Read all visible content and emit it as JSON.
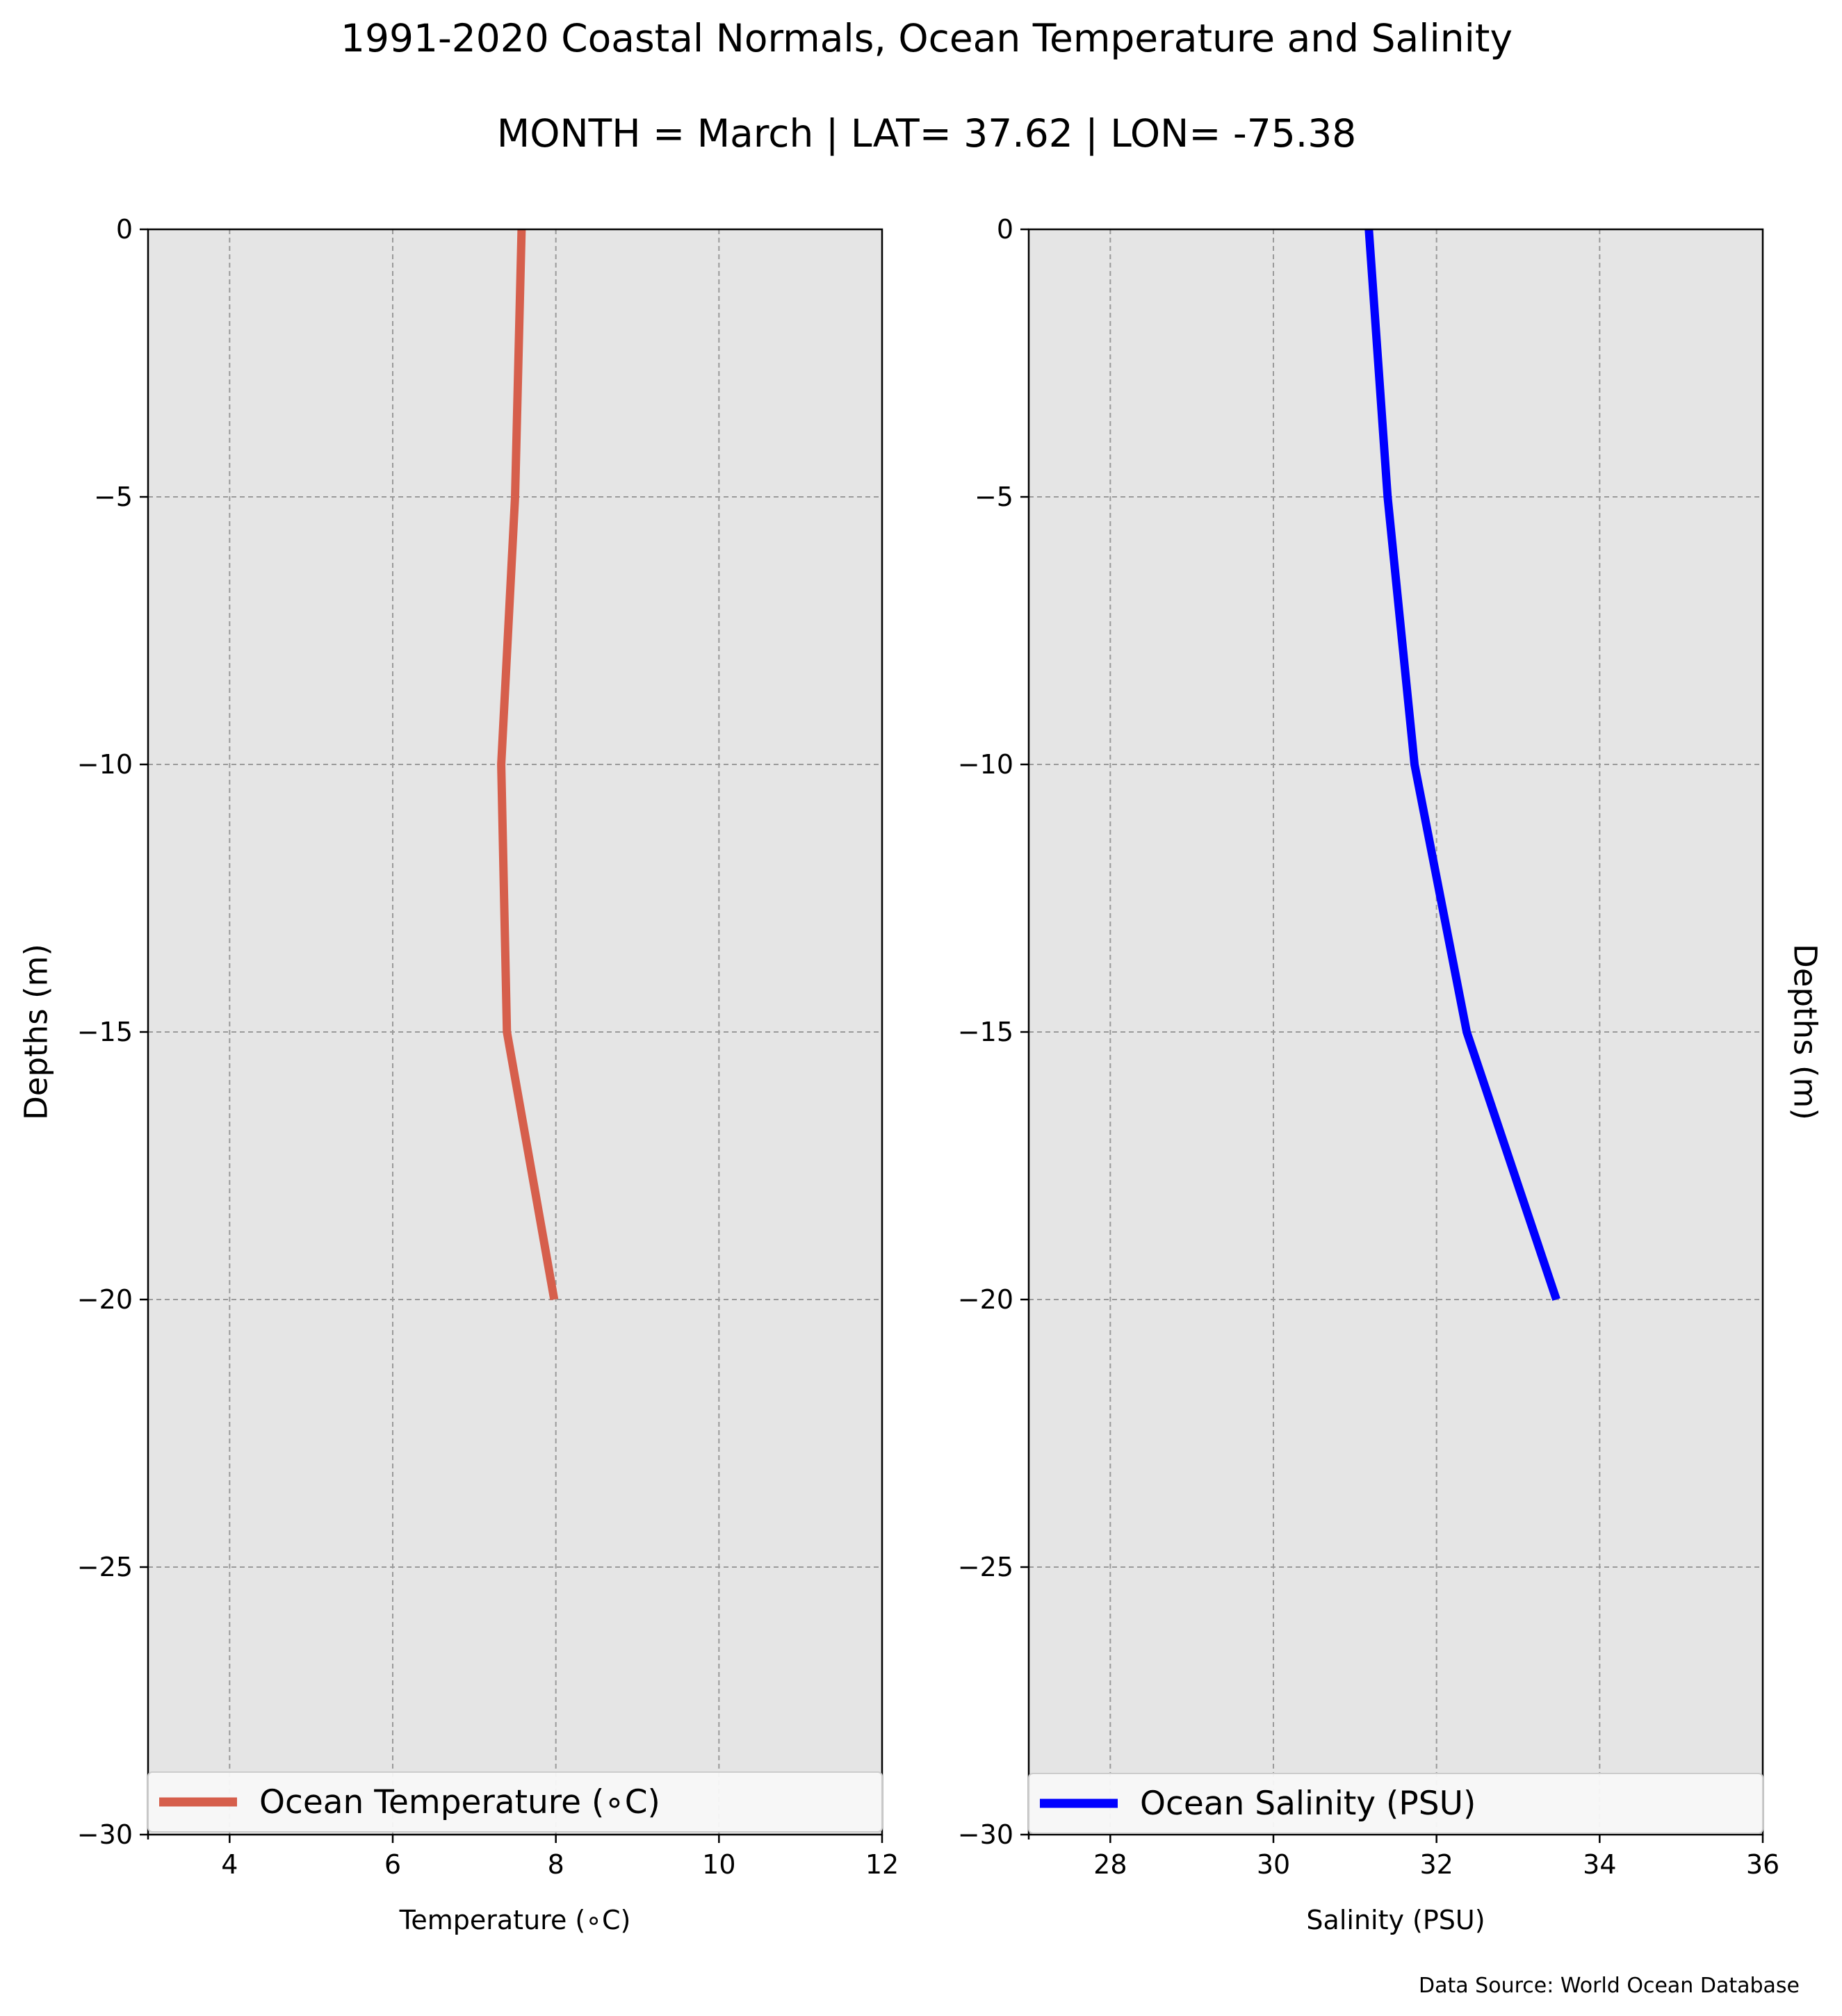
{
  "title": "1991-2020 Coastal Normals, Ocean Temperature and Salinity",
  "subtitle": "MONTH = March | LAT= 37.62 | LON= -75.38",
  "source_note": "Data Source: World Ocean Database",
  "colors": {
    "axes_background": "#e5e5e5",
    "grid": "#9a9a9a",
    "temperature_line": "#d65f4c",
    "salinity_line": "#0000ff"
  },
  "chart_data": [
    {
      "type": "line",
      "xlabel": "Temperature (∘C)",
      "ylabel": "Depths (m)",
      "xlim": [
        3,
        12
      ],
      "ylim": [
        -30,
        0
      ],
      "xticks": [
        4,
        6,
        8,
        10,
        12
      ],
      "xtick_labels": [
        "4",
        "6",
        "8",
        "10",
        "12"
      ],
      "yticks": [
        0,
        -5,
        -10,
        -15,
        -20,
        -25,
        -30
      ],
      "ytick_labels": [
        "0",
        "−5",
        "−10",
        "−15",
        "−20",
        "−25",
        "−30"
      ],
      "grid": true,
      "legend_position": "lower center",
      "series": [
        {
          "name": "Ocean Temperature (∘C)",
          "color": "#d65f4c",
          "x": [
            7.58,
            7.5,
            7.33,
            7.4,
            7.98
          ],
          "y": [
            0,
            -5,
            -10,
            -15,
            -20
          ]
        }
      ]
    },
    {
      "type": "line",
      "xlabel": "Salinity (PSU)",
      "ylabel": "Depths (m)",
      "xlim": [
        27,
        36
      ],
      "ylim": [
        -30,
        0
      ],
      "xticks": [
        28,
        30,
        32,
        34,
        36
      ],
      "xtick_labels": [
        "28",
        "30",
        "32",
        "34",
        "36"
      ],
      "yticks": [
        0,
        -5,
        -10,
        -15,
        -20,
        -25,
        -30
      ],
      "ytick_labels": [
        "0",
        "−5",
        "−10",
        "−15",
        "−20",
        "−25",
        "−30"
      ],
      "grid": true,
      "legend_position": "lower center",
      "series": [
        {
          "name": "Ocean Salinity (PSU)",
          "color": "#0000ff",
          "x": [
            31.17,
            31.4,
            31.73,
            32.37,
            33.47
          ],
          "y": [
            0,
            -5,
            -10,
            -15,
            -20
          ]
        }
      ]
    }
  ]
}
